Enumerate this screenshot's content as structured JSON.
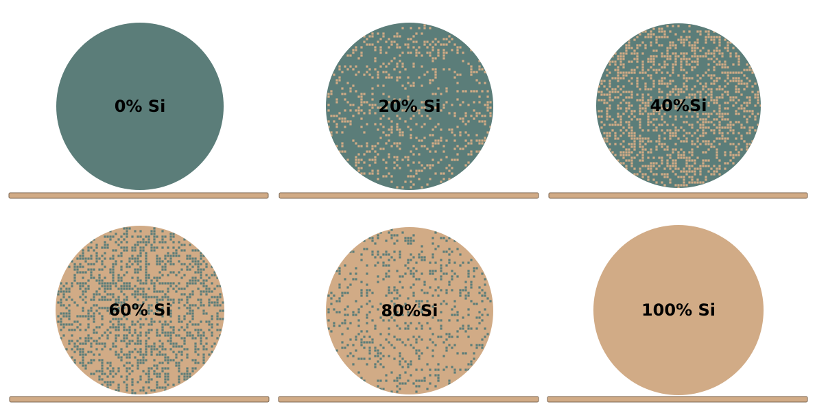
{
  "figure": {
    "colors": {
      "germanium": "#5b7d79",
      "silicon": "#d1ab86",
      "substrate": "#d1ab86",
      "substrate_edge": "#7a6652",
      "background": "#ffffff"
    },
    "panels": [
      {
        "label": "0% Si",
        "si_fraction": 0.0
      },
      {
        "label": "20% Si",
        "si_fraction": 0.2
      },
      {
        "label": "40%Si",
        "si_fraction": 0.4
      },
      {
        "label": "60% Si",
        "si_fraction": 0.6
      },
      {
        "label": "80%Si",
        "si_fraction": 0.8
      },
      {
        "label": "100% Si",
        "si_fraction": 1.0
      }
    ]
  }
}
